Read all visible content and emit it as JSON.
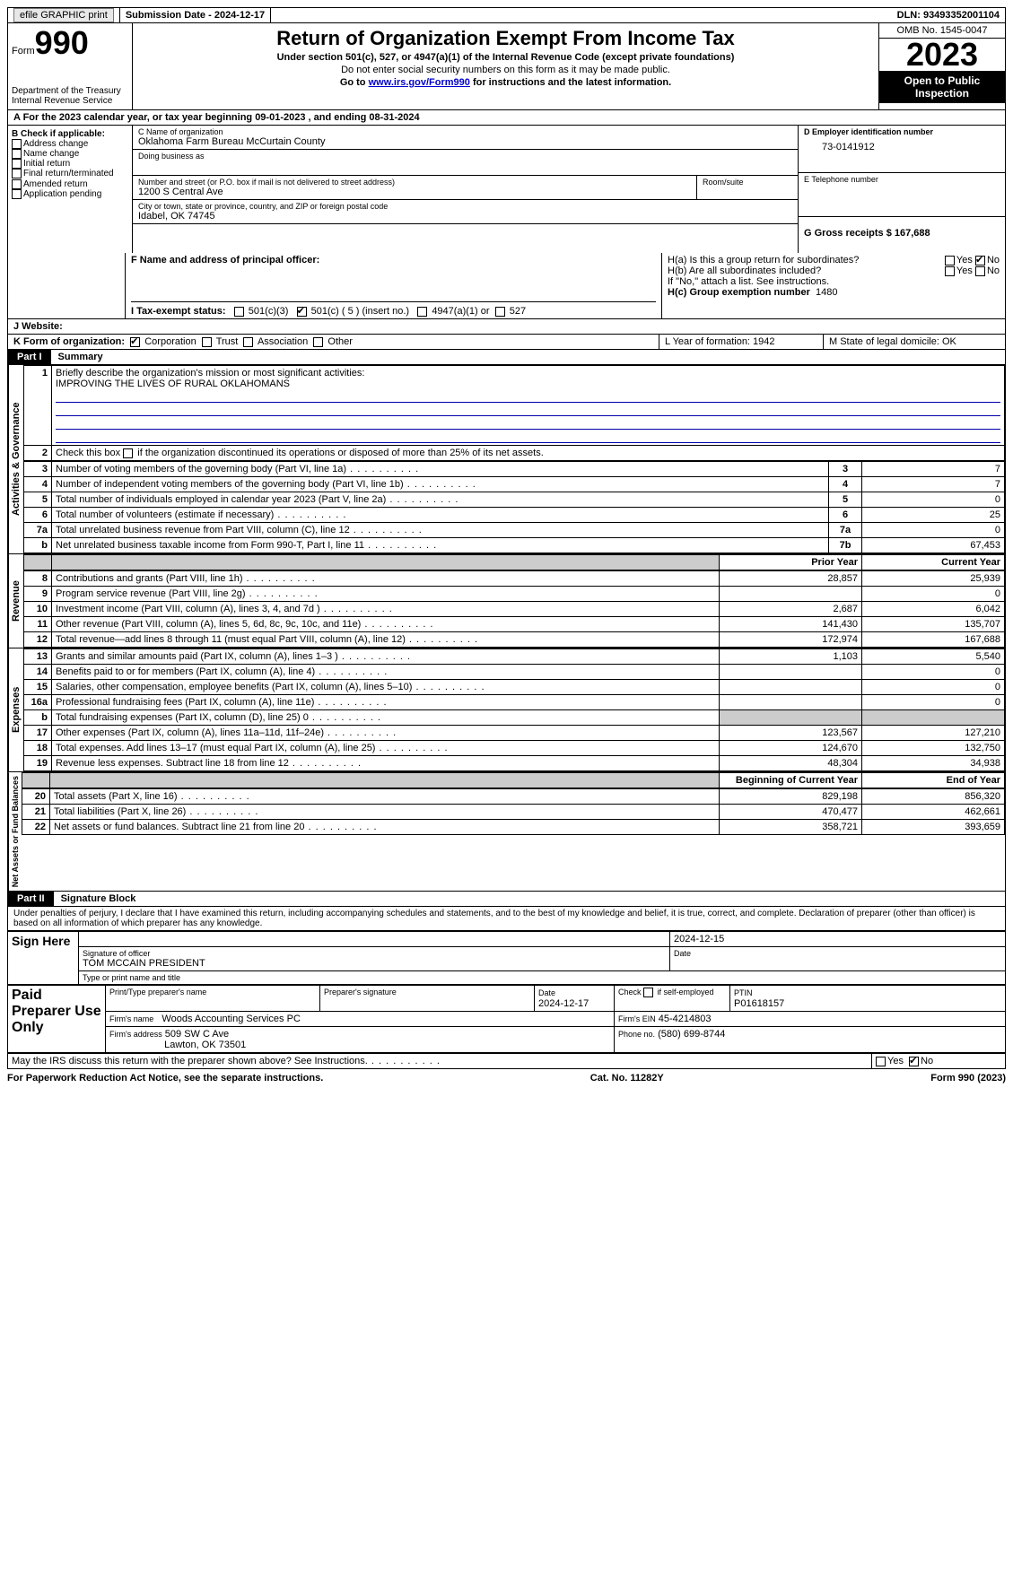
{
  "topbar": {
    "efile": "efile GRAPHIC print",
    "sub_label": "Submission Date - 2024-12-17",
    "dln_label": "DLN: 93493352001104"
  },
  "header": {
    "form_word": "Form",
    "form_no": "990",
    "dept": "Department of the Treasury",
    "irs": "Internal Revenue Service",
    "title": "Return of Organization Exempt From Income Tax",
    "sub1": "Under section 501(c), 527, or 4947(a)(1) of the Internal Revenue Code (except private foundations)",
    "sub2": "Do not enter social security numbers on this form as it may be made public.",
    "sub3_pre": "Go to ",
    "sub3_link": "www.irs.gov/Form990",
    "sub3_post": " for instructions and the latest information.",
    "omb": "OMB No. 1545-0047",
    "year": "2023",
    "inspect": "Open to Public Inspection"
  },
  "line_a": "A For the 2023 calendar year, or tax year beginning 09-01-2023   , and ending 08-31-2024",
  "box_b": {
    "title": "B Check if applicable:",
    "items": [
      "Address change",
      "Name change",
      "Initial return",
      "Final return/terminated",
      "Amended return",
      "Application pending"
    ]
  },
  "box_c": {
    "name_lbl": "C Name of organization",
    "name": "Oklahoma Farm Bureau McCurtain County",
    "dba_lbl": "Doing business as",
    "street_lbl": "Number and street (or P.O. box if mail is not delivered to street address)",
    "room_lbl": "Room/suite",
    "street": "1200 S Central Ave",
    "city_lbl": "City or town, state or province, country, and ZIP or foreign postal code",
    "city": "Idabel, OK  74745"
  },
  "box_d": {
    "ein_lbl": "D Employer identification number",
    "ein": "73-0141912",
    "tel_lbl": "E Telephone number",
    "gross_lbl": "G Gross receipts $ 167,688"
  },
  "box_f": "F  Name and address of principal officer:",
  "box_h": {
    "a": "H(a)  Is this a group return for subordinates?",
    "b": "H(b)  Are all subordinates included?",
    "note": "If \"No,\" attach a list. See instructions.",
    "c_lbl": "H(c)  Group exemption number",
    "c_val": "1480",
    "yes": "Yes",
    "no": "No"
  },
  "box_i": {
    "lbl": "I  Tax-exempt status:",
    "o1": "501(c)(3)",
    "o2": "501(c) ( 5 ) (insert no.)",
    "o3": "4947(a)(1) or",
    "o4": "527"
  },
  "box_j": "J  Website:",
  "box_k": {
    "lbl": "K Form of organization:",
    "o1": "Corporation",
    "o2": "Trust",
    "o3": "Association",
    "o4": "Other"
  },
  "box_l": "L Year of formation: 1942",
  "box_m": "M State of legal domicile: OK",
  "part1": {
    "hdr": "Part I",
    "title": "Summary",
    "q1": "Briefly describe the organization's mission or most significant activities:",
    "mission": "IMPROVING THE LIVES OF RURAL OKLAHOMANS",
    "q2": "Check this box      if the organization discontinued its operations or disposed of more than 25% of its net assets.",
    "vert_ag": "Activities & Governance",
    "vert_rev": "Revenue",
    "vert_exp": "Expenses",
    "vert_na": "Net Assets or Fund Balances",
    "rows_gov": [
      {
        "n": "3",
        "lab": "Number of voting members of the governing body (Part VI, line 1a)",
        "box": "3",
        "val": "7"
      },
      {
        "n": "4",
        "lab": "Number of independent voting members of the governing body (Part VI, line 1b)",
        "box": "4",
        "val": "7"
      },
      {
        "n": "5",
        "lab": "Total number of individuals employed in calendar year 2023 (Part V, line 2a)",
        "box": "5",
        "val": "0"
      },
      {
        "n": "6",
        "lab": "Total number of volunteers (estimate if necessary)",
        "box": "6",
        "val": "25"
      },
      {
        "n": "7a",
        "lab": "Total unrelated business revenue from Part VIII, column (C), line 12",
        "box": "7a",
        "val": "0"
      },
      {
        "n": "b",
        "lab": "Net unrelated business taxable income from Form 990-T, Part I, line 11",
        "box": "7b",
        "val": "67,453"
      }
    ],
    "col_prior": "Prior Year",
    "col_curr": "Current Year",
    "rows_rev": [
      {
        "n": "8",
        "lab": "Contributions and grants (Part VIII, line 1h)",
        "p": "28,857",
        "c": "25,939"
      },
      {
        "n": "9",
        "lab": "Program service revenue (Part VIII, line 2g)",
        "p": "",
        "c": "0"
      },
      {
        "n": "10",
        "lab": "Investment income (Part VIII, column (A), lines 3, 4, and 7d )",
        "p": "2,687",
        "c": "6,042"
      },
      {
        "n": "11",
        "lab": "Other revenue (Part VIII, column (A), lines 5, 6d, 8c, 9c, 10c, and 11e)",
        "p": "141,430",
        "c": "135,707"
      },
      {
        "n": "12",
        "lab": "Total revenue—add lines 8 through 11 (must equal Part VIII, column (A), line 12)",
        "p": "172,974",
        "c": "167,688"
      }
    ],
    "rows_exp": [
      {
        "n": "13",
        "lab": "Grants and similar amounts paid (Part IX, column (A), lines 1–3 )",
        "p": "1,103",
        "c": "5,540"
      },
      {
        "n": "14",
        "lab": "Benefits paid to or for members (Part IX, column (A), line 4)",
        "p": "",
        "c": "0"
      },
      {
        "n": "15",
        "lab": "Salaries, other compensation, employee benefits (Part IX, column (A), lines 5–10)",
        "p": "",
        "c": "0"
      },
      {
        "n": "16a",
        "lab": "Professional fundraising fees (Part IX, column (A), line 11e)",
        "p": "",
        "c": "0"
      },
      {
        "n": "b",
        "lab": "Total fundraising expenses (Part IX, column (D), line 25) 0",
        "p": "GREY",
        "c": "GREY"
      },
      {
        "n": "17",
        "lab": "Other expenses (Part IX, column (A), lines 11a–11d, 11f–24e)",
        "p": "123,567",
        "c": "127,210"
      },
      {
        "n": "18",
        "lab": "Total expenses. Add lines 13–17 (must equal Part IX, column (A), line 25)",
        "p": "124,670",
        "c": "132,750"
      },
      {
        "n": "19",
        "lab": "Revenue less expenses. Subtract line 18 from line 12",
        "p": "48,304",
        "c": "34,938"
      }
    ],
    "col_beg": "Beginning of Current Year",
    "col_end": "End of Year",
    "rows_na": [
      {
        "n": "20",
        "lab": "Total assets (Part X, line 16)",
        "p": "829,198",
        "c": "856,320"
      },
      {
        "n": "21",
        "lab": "Total liabilities (Part X, line 26)",
        "p": "470,477",
        "c": "462,661"
      },
      {
        "n": "22",
        "lab": "Net assets or fund balances. Subtract line 21 from line 20",
        "p": "358,721",
        "c": "393,659"
      }
    ]
  },
  "part2": {
    "hdr": "Part II",
    "title": "Signature Block",
    "decl": "Under penalties of perjury, I declare that I have examined this return, including accompanying schedules and statements, and to the best of my knowledge and belief, it is true, correct, and complete. Declaration of preparer (other than officer) is based on all information of which preparer has any knowledge.",
    "sign_here": "Sign Here",
    "sig_off_lbl": "Signature of officer",
    "sig_date_lbl": "Date",
    "sig_date": "2024-12-15",
    "officer": "TOM MCCAIN PRESIDENT",
    "type_lbl": "Type or print name and title",
    "paid": "Paid Preparer Use Only",
    "prep_name_lbl": "Print/Type preparer's name",
    "prep_sig_lbl": "Preparer's signature",
    "prep_date_lbl": "Date",
    "prep_date": "2024-12-17",
    "self_lbl": "Check       if self-employed",
    "ptin_lbl": "PTIN",
    "ptin": "P01618157",
    "firm_name_lbl": "Firm's name",
    "firm_name": "Woods Accounting Services PC",
    "firm_ein_lbl": "Firm's EIN",
    "firm_ein": "45-4214803",
    "firm_addr_lbl": "Firm's address",
    "firm_addr1": "509 SW C Ave",
    "firm_addr2": "Lawton, OK  73501",
    "phone_lbl": "Phone no.",
    "phone": "(580) 699-8744",
    "discuss": "May the IRS discuss this return with the preparer shown above? See Instructions."
  },
  "footer": {
    "left": "For Paperwork Reduction Act Notice, see the separate instructions.",
    "mid": "Cat. No. 11282Y",
    "right": "Form 990 (2023)"
  }
}
